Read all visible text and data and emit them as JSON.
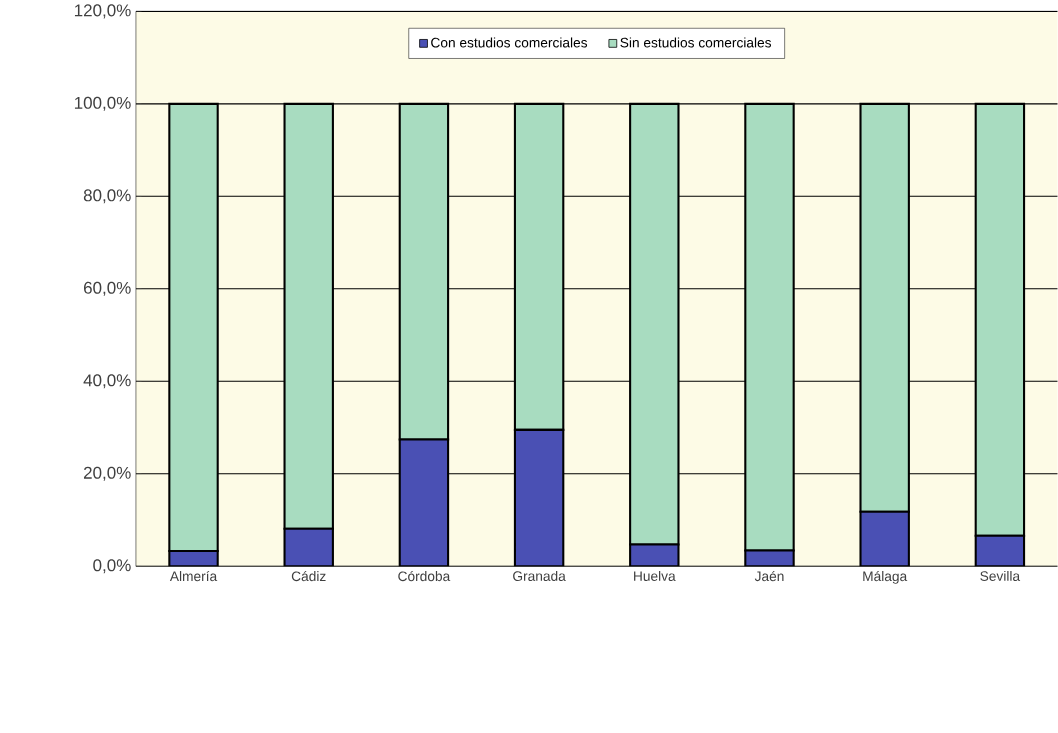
{
  "chart_data": {
    "type": "bar",
    "stacked": true,
    "categories": [
      "Almería",
      "Cádiz",
      "Córdoba",
      "Granada",
      "Huelva",
      "Jaén",
      "Málaga",
      "Sevilla"
    ],
    "series": [
      {
        "name": "Con estudios comerciales",
        "color": "#4a50b4",
        "values": [
          3.3,
          8.1,
          27.4,
          29.5,
          4.7,
          3.4,
          11.8,
          6.6
        ]
      },
      {
        "name": "Sin estudios comerciales",
        "color": "#a8dcc0",
        "values": [
          96.7,
          91.9,
          72.6,
          70.5,
          95.3,
          96.6,
          88.2,
          93.4
        ]
      }
    ],
    "ylim": [
      0,
      120
    ],
    "yticks": [
      {
        "value": 0,
        "label": "0,0%"
      },
      {
        "value": 20,
        "label": "20,0%"
      },
      {
        "value": 40,
        "label": "40,0%"
      },
      {
        "value": 60,
        "label": "60,0%"
      },
      {
        "value": 80,
        "label": "80,0%"
      },
      {
        "value": 100,
        "label": "100,0%"
      },
      {
        "value": 120,
        "label": "120,0%"
      }
    ],
    "grid": "y",
    "legend": "top"
  }
}
